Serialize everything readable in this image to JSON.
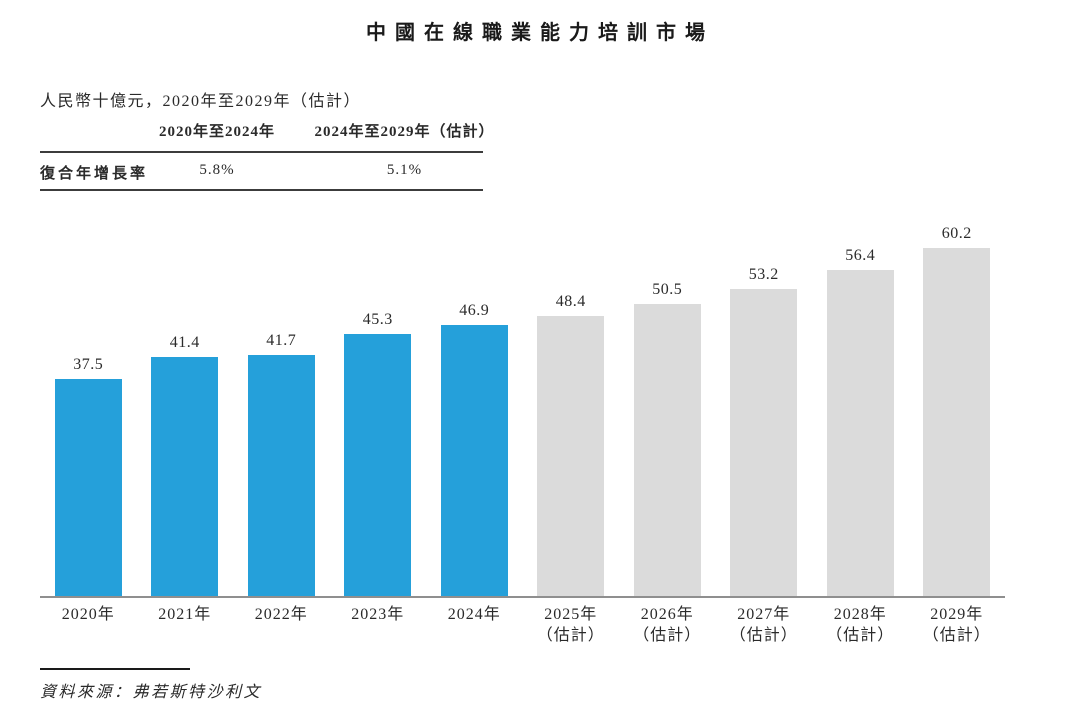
{
  "title": "中國在線職業能力培訓市場",
  "subtitle": "人民幣十億元，2020年至2029年（估計）",
  "cagr_table": {
    "row_label": "復合年增長率",
    "col_headers": [
      "2020年至2024年",
      "2024年至2029年（估計）"
    ],
    "values": [
      "5.8%",
      "5.1%"
    ]
  },
  "source": "資料來源：弗若斯特沙利文",
  "chart_data": {
    "type": "bar",
    "title": "中國在線職業能力培訓市場",
    "ylabel": "人民幣十億元",
    "categories": [
      "2020年",
      "2021年",
      "2022年",
      "2023年",
      "2024年",
      "2025年\n（估計）",
      "2026年\n（估計）",
      "2027年\n（估計）",
      "2028年\n（估計）",
      "2029年\n（估計）"
    ],
    "values": [
      37.5,
      41.4,
      41.7,
      45.3,
      46.9,
      48.4,
      50.5,
      53.2,
      56.4,
      60.2
    ],
    "historical_count": 5,
    "colors": {
      "historical": "#25A0DA",
      "estimated": "#DBDBDB"
    },
    "ylim": [
      0,
      65
    ],
    "grid": false,
    "legend": "none",
    "value_labels_shown": true,
    "annotations": {
      "cagr_2020_2024": "5.8%",
      "cagr_2024_2029": "5.1%"
    }
  }
}
